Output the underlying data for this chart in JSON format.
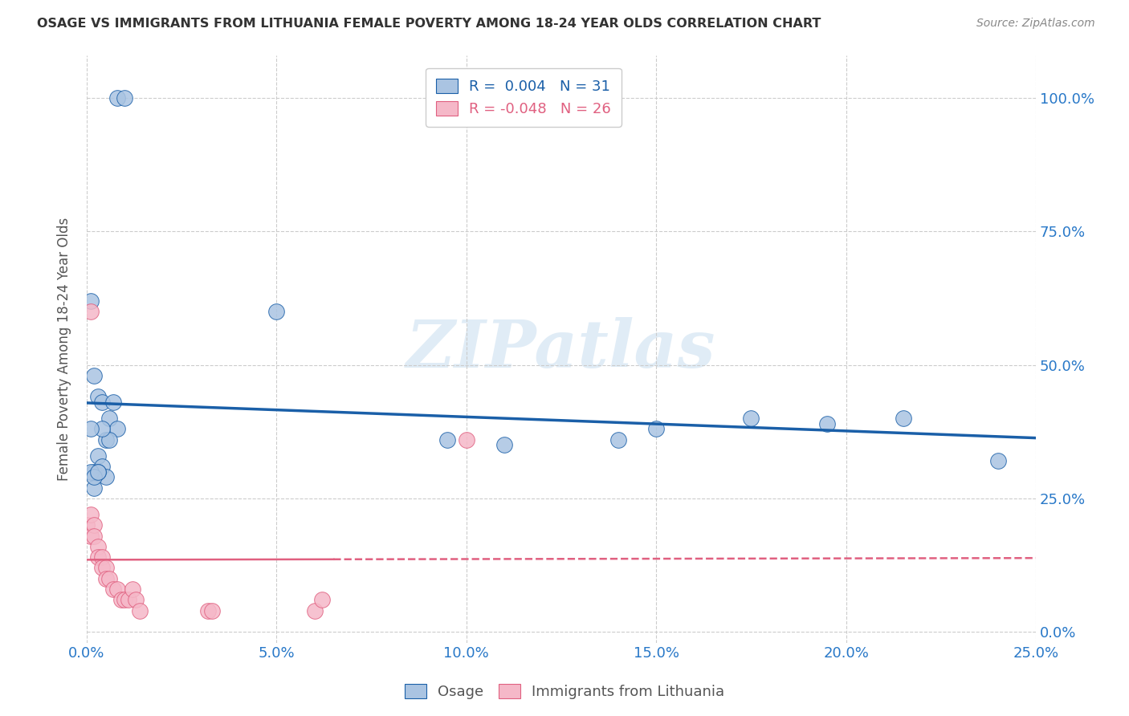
{
  "title": "OSAGE VS IMMIGRANTS FROM LITHUANIA FEMALE POVERTY AMONG 18-24 YEAR OLDS CORRELATION CHART",
  "source": "Source: ZipAtlas.com",
  "ylabel": "Female Poverty Among 18-24 Year Olds",
  "xlim": [
    0.0,
    0.25
  ],
  "ylim": [
    -0.02,
    1.08
  ],
  "yticks": [
    0.0,
    0.25,
    0.5,
    0.75,
    1.0
  ],
  "ytick_labels": [
    "0.0%",
    "25.0%",
    "50.0%",
    "75.0%",
    "100.0%"
  ],
  "xticks": [
    0.0,
    0.05,
    0.1,
    0.15,
    0.2,
    0.25
  ],
  "xtick_labels": [
    "0.0%",
    "5.0%",
    "10.0%",
    "15.0%",
    "20.0%",
    "25.0%"
  ],
  "osage_color": "#aac4e2",
  "lithuania_color": "#f5b8c8",
  "trendline_osage_color": "#1a5fa8",
  "trendline_lithuania_color": "#e06080",
  "watermark": "ZIPatlas",
  "legend_r_osage": "0.004",
  "legend_n_osage": "31",
  "legend_r_lithuania": "-0.048",
  "legend_n_lithuania": "26",
  "osage_x": [
    0.008,
    0.01,
    0.001,
    0.002,
    0.003,
    0.004,
    0.005,
    0.006,
    0.007,
    0.008,
    0.002,
    0.003,
    0.004,
    0.005,
    0.006,
    0.002,
    0.003,
    0.004,
    0.05,
    0.095,
    0.11,
    0.14,
    0.15,
    0.175,
    0.195,
    0.215,
    0.24,
    0.001,
    0.002,
    0.003,
    0.001
  ],
  "osage_y": [
    1.0,
    1.0,
    0.62,
    0.48,
    0.44,
    0.43,
    0.36,
    0.4,
    0.43,
    0.38,
    0.3,
    0.33,
    0.31,
    0.29,
    0.36,
    0.27,
    0.3,
    0.38,
    0.6,
    0.36,
    0.35,
    0.36,
    0.38,
    0.4,
    0.39,
    0.4,
    0.32,
    0.3,
    0.29,
    0.3,
    0.38
  ],
  "lithuania_x": [
    0.0,
    0.001,
    0.001,
    0.002,
    0.002,
    0.003,
    0.003,
    0.004,
    0.004,
    0.005,
    0.005,
    0.006,
    0.007,
    0.008,
    0.009,
    0.01,
    0.011,
    0.012,
    0.013,
    0.014,
    0.032,
    0.033,
    0.06,
    0.062,
    0.1,
    0.001
  ],
  "lithuania_y": [
    0.2,
    0.22,
    0.18,
    0.2,
    0.18,
    0.16,
    0.14,
    0.14,
    0.12,
    0.12,
    0.1,
    0.1,
    0.08,
    0.08,
    0.06,
    0.06,
    0.06,
    0.08,
    0.06,
    0.04,
    0.04,
    0.04,
    0.04,
    0.06,
    0.36,
    0.6
  ],
  "background_color": "#ffffff",
  "grid_color": "#cccccc",
  "grid_linestyle": "--",
  "title_color": "#333333",
  "source_color": "#888888",
  "axis_label_color": "#555555",
  "tick_color": "#2878c8",
  "watermark_color": "#cce0f0",
  "watermark_alpha": 0.6,
  "watermark_fontsize": 60
}
